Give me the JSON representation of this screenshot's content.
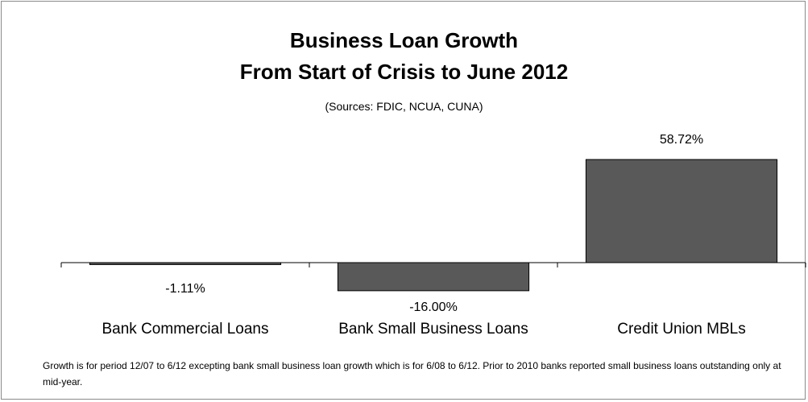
{
  "chart_data": {
    "type": "bar",
    "title": [
      "Business Loan Growth",
      "From Start of Crisis to June 2012"
    ],
    "subtitle": "(Sources: FDIC, NCUA, CUNA)",
    "categories": [
      "Bank Commercial Loans",
      "Bank Small Business Loans",
      "Credit Union MBLs"
    ],
    "values": [
      -1.11,
      -16.0,
      58.72
    ],
    "data_labels": [
      "-1.11%",
      "-16.00%",
      "58.72%"
    ],
    "unit": "%",
    "grid": false,
    "legend": "none",
    "colors": {
      "bar": "#595959",
      "bar_border": "#000000",
      "axis": "#000000"
    }
  },
  "footnote": "Growth is for period 12/07 to 6/12 excepting bank small business loan growth which is for 6/08 to 6/12.  Prior to 2010 banks reported small business loans outstanding only at mid-year."
}
